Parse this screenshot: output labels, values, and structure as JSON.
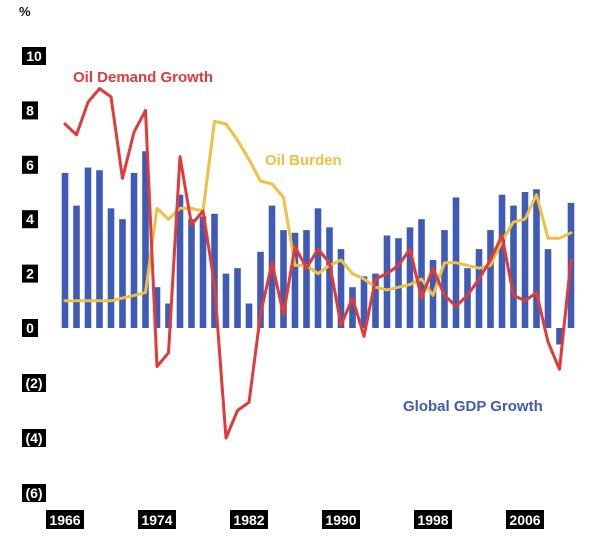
{
  "chart_data": {
    "type": "bar+line",
    "unit_label": "%",
    "title": "",
    "xlabel": "",
    "ylabel": "",
    "ylim": [
      -6,
      10
    ],
    "yticks": [
      10,
      8,
      6,
      4,
      2,
      0,
      -2,
      -4,
      -6
    ],
    "ytick_labels": [
      "10",
      "8",
      "6",
      "4",
      "2",
      "0",
      "(2)",
      "(4)",
      "(6)"
    ],
    "xticks": [
      1966,
      1974,
      1982,
      1990,
      1998,
      2006
    ],
    "xtick_labels": [
      "1966",
      "1974",
      "1982",
      "1990",
      "1998",
      "2006"
    ],
    "x": [
      1966,
      1967,
      1968,
      1969,
      1970,
      1971,
      1972,
      1973,
      1974,
      1975,
      1976,
      1977,
      1978,
      1979,
      1980,
      1981,
      1982,
      1983,
      1984,
      1985,
      1986,
      1987,
      1988,
      1989,
      1990,
      1991,
      1992,
      1993,
      1994,
      1995,
      1996,
      1997,
      1998,
      1999,
      2000,
      2001,
      2002,
      2003,
      2004,
      2005,
      2006,
      2007,
      2008,
      2009,
      2010
    ],
    "series": [
      {
        "name": "Global GDP Growth",
        "kind": "bar",
        "color": "#3f5bb5",
        "values": [
          5.7,
          4.5,
          5.9,
          5.8,
          4.4,
          4.0,
          5.7,
          6.5,
          1.5,
          0.9,
          4.9,
          4.0,
          4.1,
          4.2,
          2.0,
          2.2,
          0.9,
          2.8,
          4.5,
          3.6,
          3.5,
          3.6,
          4.4,
          3.7,
          2.9,
          1.5,
          1.9,
          2.0,
          3.4,
          3.3,
          3.7,
          4.0,
          2.5,
          3.6,
          4.8,
          2.2,
          2.9,
          3.6,
          4.9,
          4.5,
          5.0,
          5.1,
          2.9,
          -0.6,
          4.6
        ]
      },
      {
        "name": "Oil Demand Growth",
        "kind": "line",
        "color": "#e03a3a",
        "values": [
          7.5,
          7.1,
          8.3,
          8.8,
          8.5,
          5.5,
          7.2,
          8.0,
          -1.4,
          -0.9,
          6.3,
          3.8,
          4.3,
          1.6,
          -4.0,
          -3.0,
          -2.7,
          0.5,
          2.4,
          0.5,
          3.0,
          2.2,
          2.9,
          2.4,
          0.1,
          1.1,
          -0.3,
          1.8,
          2.0,
          2.3,
          2.9,
          1.1,
          2.2,
          1.2,
          0.8,
          1.2,
          1.8,
          2.5,
          3.4,
          1.2,
          1.0,
          1.3,
          -0.5,
          -1.5,
          2.5
        ]
      },
      {
        "name": "Oil Burden",
        "kind": "line",
        "color": "#f0c040",
        "values": [
          1.0,
          1.0,
          1.0,
          1.0,
          1.0,
          1.1,
          1.2,
          1.3,
          4.4,
          4.0,
          4.4,
          4.4,
          4.3,
          7.6,
          7.5,
          6.9,
          6.2,
          5.4,
          5.3,
          4.8,
          2.3,
          2.3,
          2.0,
          2.3,
          2.5,
          2.0,
          1.8,
          1.5,
          1.4,
          1.5,
          1.6,
          1.8,
          1.2,
          2.4,
          2.4,
          2.3,
          2.2,
          2.3,
          3.2,
          3.9,
          4.0,
          4.9,
          3.3,
          3.3,
          3.5
        ]
      }
    ]
  }
}
